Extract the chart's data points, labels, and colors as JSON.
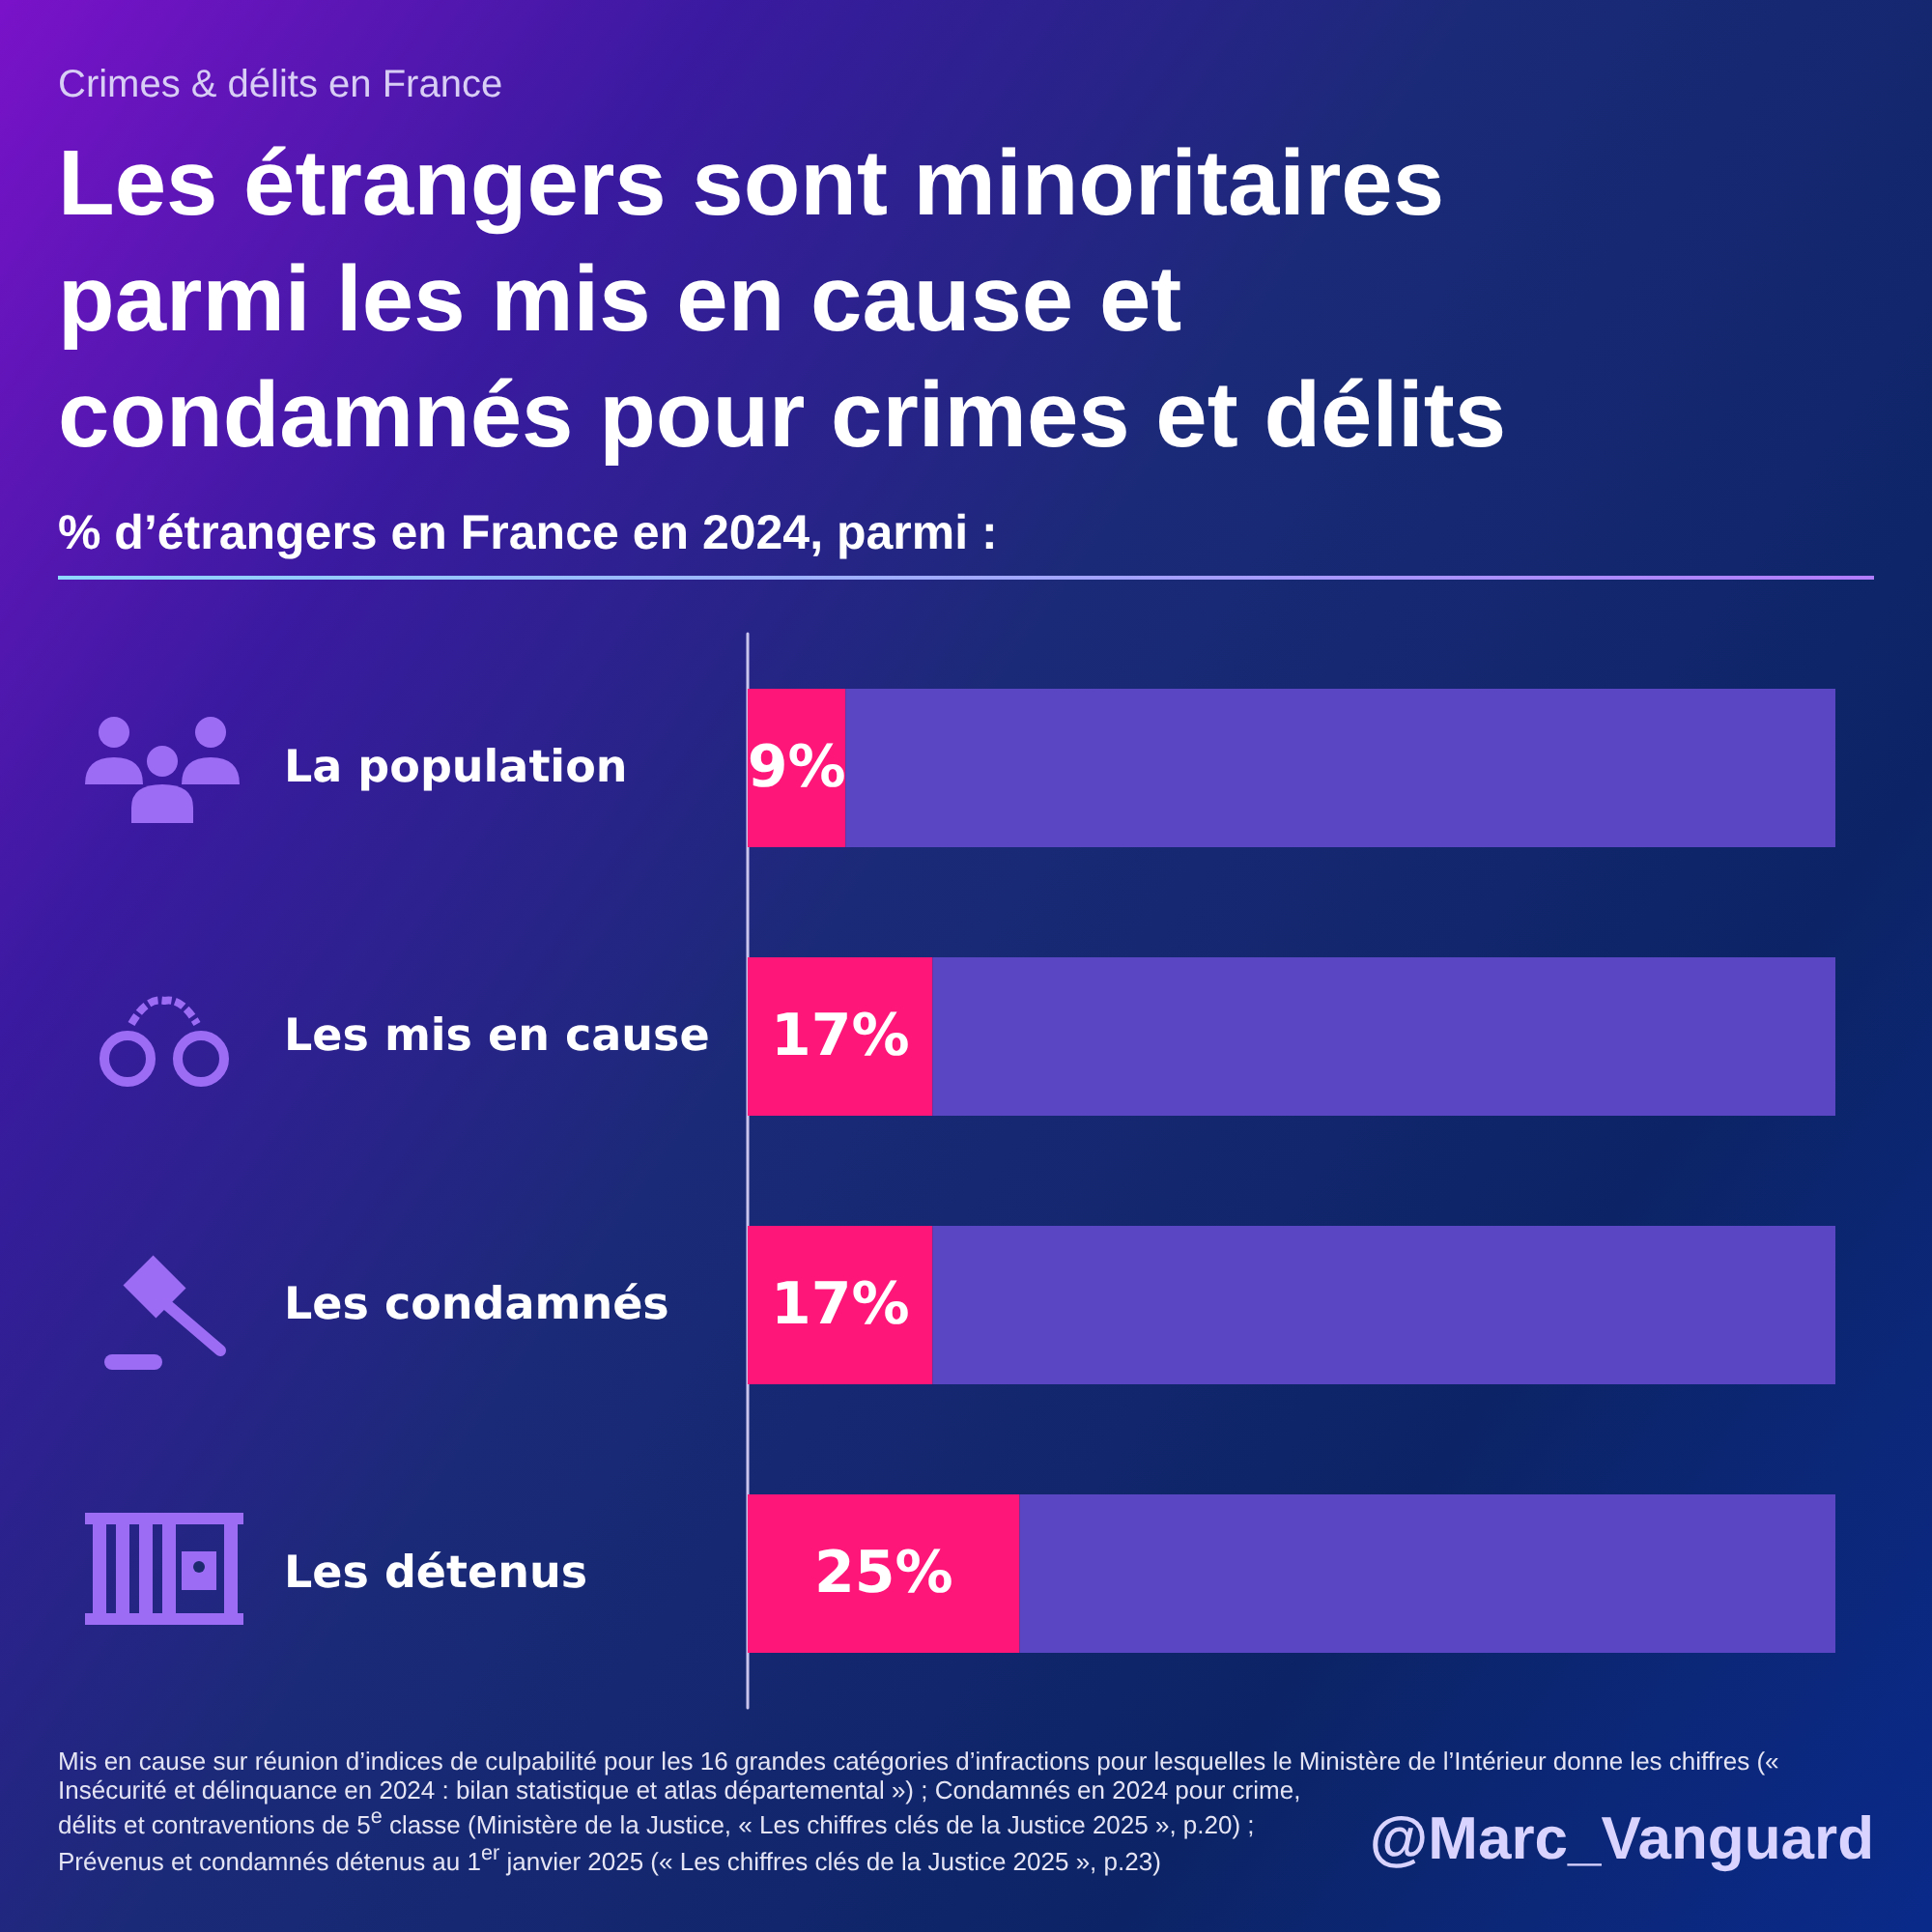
{
  "chart_data": {
    "type": "bar",
    "orientation": "horizontal",
    "stacked": true,
    "title": "Les étrangers sont minoritaires parmi les mis en cause et condamnés pour crimes et délits",
    "subtitle": "% d’étrangers en France en 2024, parmi :",
    "categories": [
      "La population",
      "Les mis en cause",
      "Les condamnés",
      "Les détenus"
    ],
    "series": [
      {
        "color": "#ff1679",
        "values": [
          9,
          17,
          17,
          25
        ],
        "value_labels": [
          "9%",
          "17%",
          "17%",
          "25%"
        ]
      },
      {
        "color": "#5a46c2",
        "values": [
          91,
          83,
          83,
          75
        ]
      }
    ],
    "xlim": [
      0,
      100
    ],
    "tick_labels": "y",
    "annotations": [
      "Crimes & délits en France",
      "Mis en cause sur réunion d’indices de culpabilité pour les 16 grandes catégories d’infractions pour lesquelles le Ministère de l’Intérieur donne les chiffres (« Insécurité et délinquance en 2024 : bilan statistique et atlas départemental ») ; Condamnés en 2024 pour crime, délits et contraventions de 5$^{e}$ classe (Ministère de la Justice, « Les chiffres clés de la Justice 2025 », p.20) ; Prévenus et condamnés détenus au 1$^{er}$ janvier 2025 (« Les chiffres clés de la Justice 2025 », p.23)",
      "@Marc_Vanguard"
    ]
  }
}
